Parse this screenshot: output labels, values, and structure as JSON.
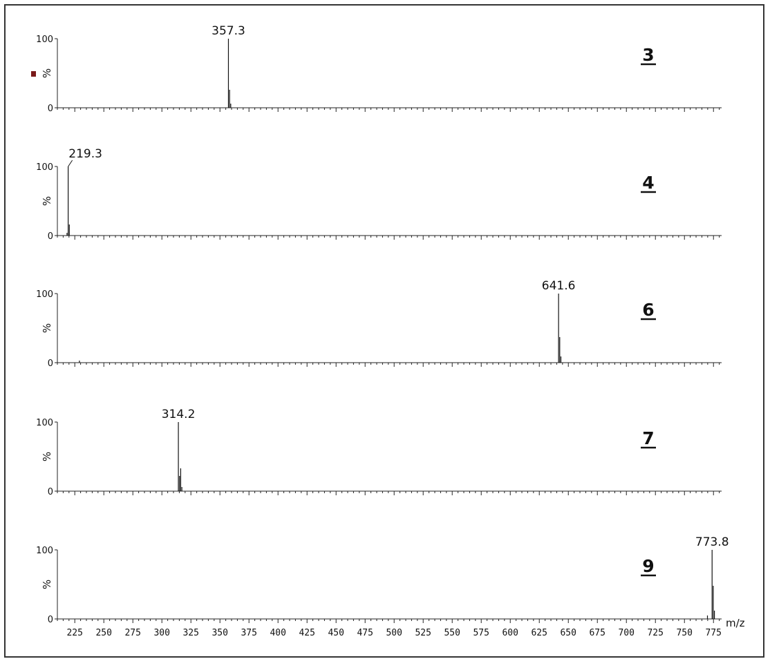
{
  "chart_data": {
    "type": "mass-spectrum",
    "x_axis": {
      "label": "m/z",
      "range": [
        210,
        782
      ],
      "tick_labels": [
        225,
        250,
        275,
        300,
        325,
        350,
        375,
        400,
        425,
        450,
        475,
        500,
        525,
        550,
        575,
        600,
        625,
        650,
        675,
        700,
        725,
        750,
        775
      ],
      "minor_tick_step": 5
    },
    "y_axis": {
      "label": "%",
      "range": [
        0,
        100
      ],
      "tick_labels": [
        "100",
        "0"
      ]
    },
    "marker_color": "#7a1a1a",
    "panels": [
      {
        "compound": "3",
        "base_peak_label": "357.3",
        "peaks": [
          {
            "mz": 357.3,
            "intensity": 100
          },
          {
            "mz": 358.3,
            "intensity": 26
          },
          {
            "mz": 359.3,
            "intensity": 6
          }
        ]
      },
      {
        "compound": "4",
        "base_peak_label": "219.3",
        "peaks": [
          {
            "mz": 218.3,
            "intensity": 4
          },
          {
            "mz": 219.3,
            "intensity": 100
          },
          {
            "mz": 220.3,
            "intensity": 16
          }
        ]
      },
      {
        "compound": "6",
        "base_peak_label": "641.6",
        "peaks": [
          {
            "mz": 229.0,
            "intensity": 3
          },
          {
            "mz": 641.6,
            "intensity": 100
          },
          {
            "mz": 642.6,
            "intensity": 37
          },
          {
            "mz": 643.6,
            "intensity": 9
          }
        ]
      },
      {
        "compound": "7",
        "base_peak_label": "314.2",
        "peaks": [
          {
            "mz": 314.2,
            "intensity": 100
          },
          {
            "mz": 315.2,
            "intensity": 22
          },
          {
            "mz": 316.2,
            "intensity": 33
          },
          {
            "mz": 317.2,
            "intensity": 6
          }
        ]
      },
      {
        "compound": "9",
        "base_peak_label": "773.8",
        "peaks": [
          {
            "mz": 769.8,
            "intensity": 5
          },
          {
            "mz": 773.8,
            "intensity": 100
          },
          {
            "mz": 774.8,
            "intensity": 48
          },
          {
            "mz": 775.8,
            "intensity": 12
          }
        ]
      }
    ]
  }
}
